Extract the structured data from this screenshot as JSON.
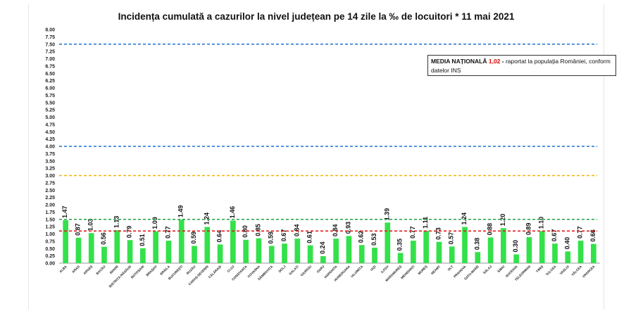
{
  "title": "Incidența cumulată a cazurilor la nivel județean pe 14 zile la ‰ de locuitori *  11 mai 2021",
  "annotation": {
    "label": "MEDIA NAȚIONALĂ",
    "value": "1,02",
    "dash": " - ",
    "text": "raportat la populația României, conform datelor INS"
  },
  "colors": {
    "bar": "#33e14a",
    "line_blue": "#1f6fd1",
    "line_orange": "#f0b400",
    "line_green": "#22a24a",
    "line_red": "#e31b1b"
  },
  "chart_data": {
    "type": "bar",
    "title": "Incidența cumulată a cazurilor la nivel județean pe 14 zile la ‰ de locuitori *  11 mai 2021",
    "ylim": [
      0,
      8
    ],
    "ytick_step": 0.25,
    "categories": [
      "ALBA",
      "ARAD",
      "ARGEȘ",
      "BACĂU",
      "BIHOR",
      "BISTRIȚA-NĂSĂUD",
      "BOTOȘANI",
      "BRAȘOV",
      "BRĂILA",
      "BUCUREȘTI",
      "BUZĂU",
      "CARAȘ-SEVERIN",
      "CĂLĂRAȘI",
      "CLUJ",
      "CONSTANȚA",
      "COVASNA",
      "DÂMBOVIȚA",
      "DOLJ",
      "GALAȚI",
      "GIURGIU",
      "GORJ",
      "HARGHITA",
      "HUNEDOARA",
      "IALOMIȚA",
      "IAȘI",
      "ILFOV",
      "MARAMUREȘ",
      "MEHEDINȚI",
      "MUREȘ",
      "NEAMȚ",
      "OLT",
      "PRAHOVA",
      "SATU-MARE",
      "SĂLAJ",
      "SIBIU",
      "SUCEAVA",
      "TELEORMAN",
      "TIMIȘ",
      "TULCEA",
      "VASLUI",
      "VÂLCEA",
      "VRANCEA"
    ],
    "values": [
      1.47,
      0.87,
      1.03,
      0.56,
      1.13,
      0.79,
      0.51,
      1.09,
      0.77,
      1.49,
      0.59,
      1.24,
      0.64,
      1.46,
      0.8,
      0.85,
      0.59,
      0.67,
      0.84,
      0.61,
      0.24,
      0.84,
      0.93,
      0.62,
      0.53,
      1.39,
      0.35,
      0.77,
      1.11,
      0.73,
      0.57,
      1.24,
      0.38,
      0.88,
      1.2,
      0.3,
      0.89,
      1.1,
      0.67,
      0.4,
      0.77,
      0.66
    ],
    "value_labels": [
      "1.47",
      "0.87",
      "1.03",
      "0.56",
      "1.13",
      "0.79",
      "0.51",
      "1.09",
      "0.77",
      "1.49",
      "0.59",
      "1.24",
      "0.64",
      "1.46",
      "0.80",
      "0.85",
      "0.59",
      "0.67",
      "0.84",
      "0.61",
      "0.24",
      "0.84",
      "0.93",
      "0.62",
      "0.53",
      "1.39",
      "0.35",
      "0.77",
      "1.11",
      "0.73",
      "0.57",
      "1.24",
      "0.38",
      "0.88",
      "1.20",
      "0.30",
      "0.89",
      "1.10",
      "0.67",
      "0.40",
      "0.77",
      "0.66"
    ],
    "reference_lines": [
      {
        "value": 7.5,
        "color": "#1f6fd1"
      },
      {
        "value": 4.0,
        "color": "#1f6fd1"
      },
      {
        "value": 3.0,
        "color": "#f0b400"
      },
      {
        "value": 1.5,
        "color": "#22a24a"
      },
      {
        "value": 1.1,
        "color": "#e31b1b"
      }
    ],
    "grid": false,
    "legend": "none"
  }
}
